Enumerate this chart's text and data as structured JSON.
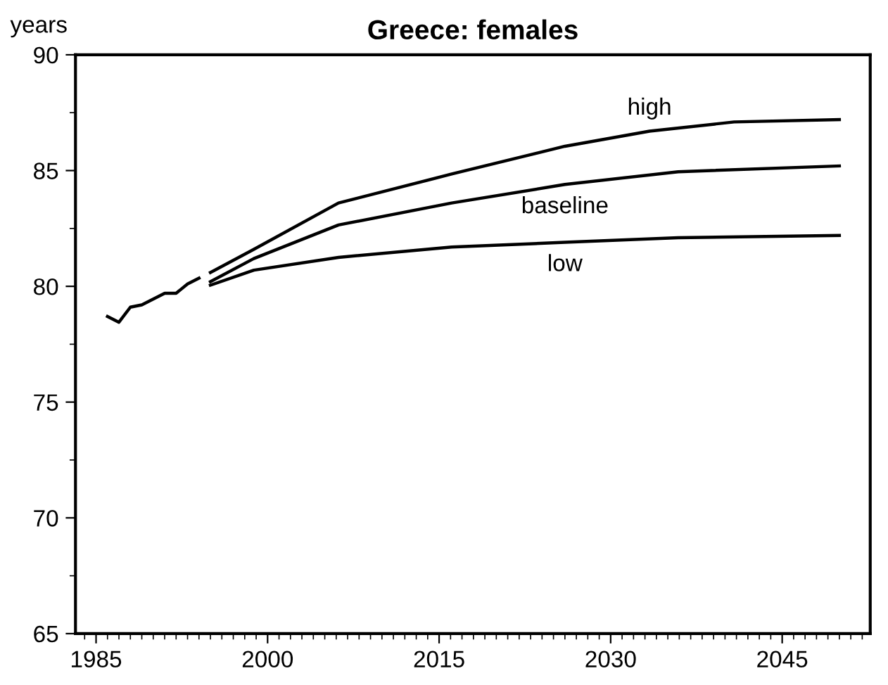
{
  "chart_data": {
    "type": "line",
    "title": "Greece: females",
    "ylabel": "years",
    "xlim": [
      1983.2,
      2052.7
    ],
    "ylim": [
      65,
      90
    ],
    "xticks": [
      1985,
      2000,
      2015,
      2030,
      2045
    ],
    "yticks": [
      65,
      70,
      75,
      80,
      85,
      90
    ],
    "grid": false,
    "legend": false,
    "marker": "none",
    "line_style": "solid",
    "series": [
      {
        "color": "#000000",
        "x": [
          1986,
          1987,
          1988,
          1989,
          1990,
          1991,
          1992,
          1993,
          1994
        ],
        "values": [
          78.7,
          78.45,
          79.1,
          79.2,
          79.45,
          79.7,
          79.7,
          80.1,
          80.35
        ]
      },
      {
        "name": "high",
        "color": "#000000",
        "x": [
          1995,
          1998.8,
          2006.2,
          2016.1,
          2026,
          2033.4,
          2040.8,
          2050
        ],
        "values": [
          80.6,
          81.6,
          83.6,
          84.85,
          86.05,
          86.7,
          87.1,
          87.2
        ]
      },
      {
        "name": "baseline",
        "color": "#000000",
        "x": [
          1995,
          1998.8,
          2006.2,
          2016.1,
          2026,
          2035.9,
          2050
        ],
        "values": [
          80.2,
          81.2,
          82.65,
          83.6,
          84.4,
          84.95,
          85.2
        ]
      },
      {
        "name": "low",
        "color": "#000000",
        "x": [
          1995,
          1998.8,
          2006.2,
          2016.1,
          2026,
          2035.9,
          2050
        ],
        "values": [
          80.05,
          80.7,
          81.25,
          81.7,
          81.9,
          82.1,
          82.2
        ]
      }
    ]
  }
}
